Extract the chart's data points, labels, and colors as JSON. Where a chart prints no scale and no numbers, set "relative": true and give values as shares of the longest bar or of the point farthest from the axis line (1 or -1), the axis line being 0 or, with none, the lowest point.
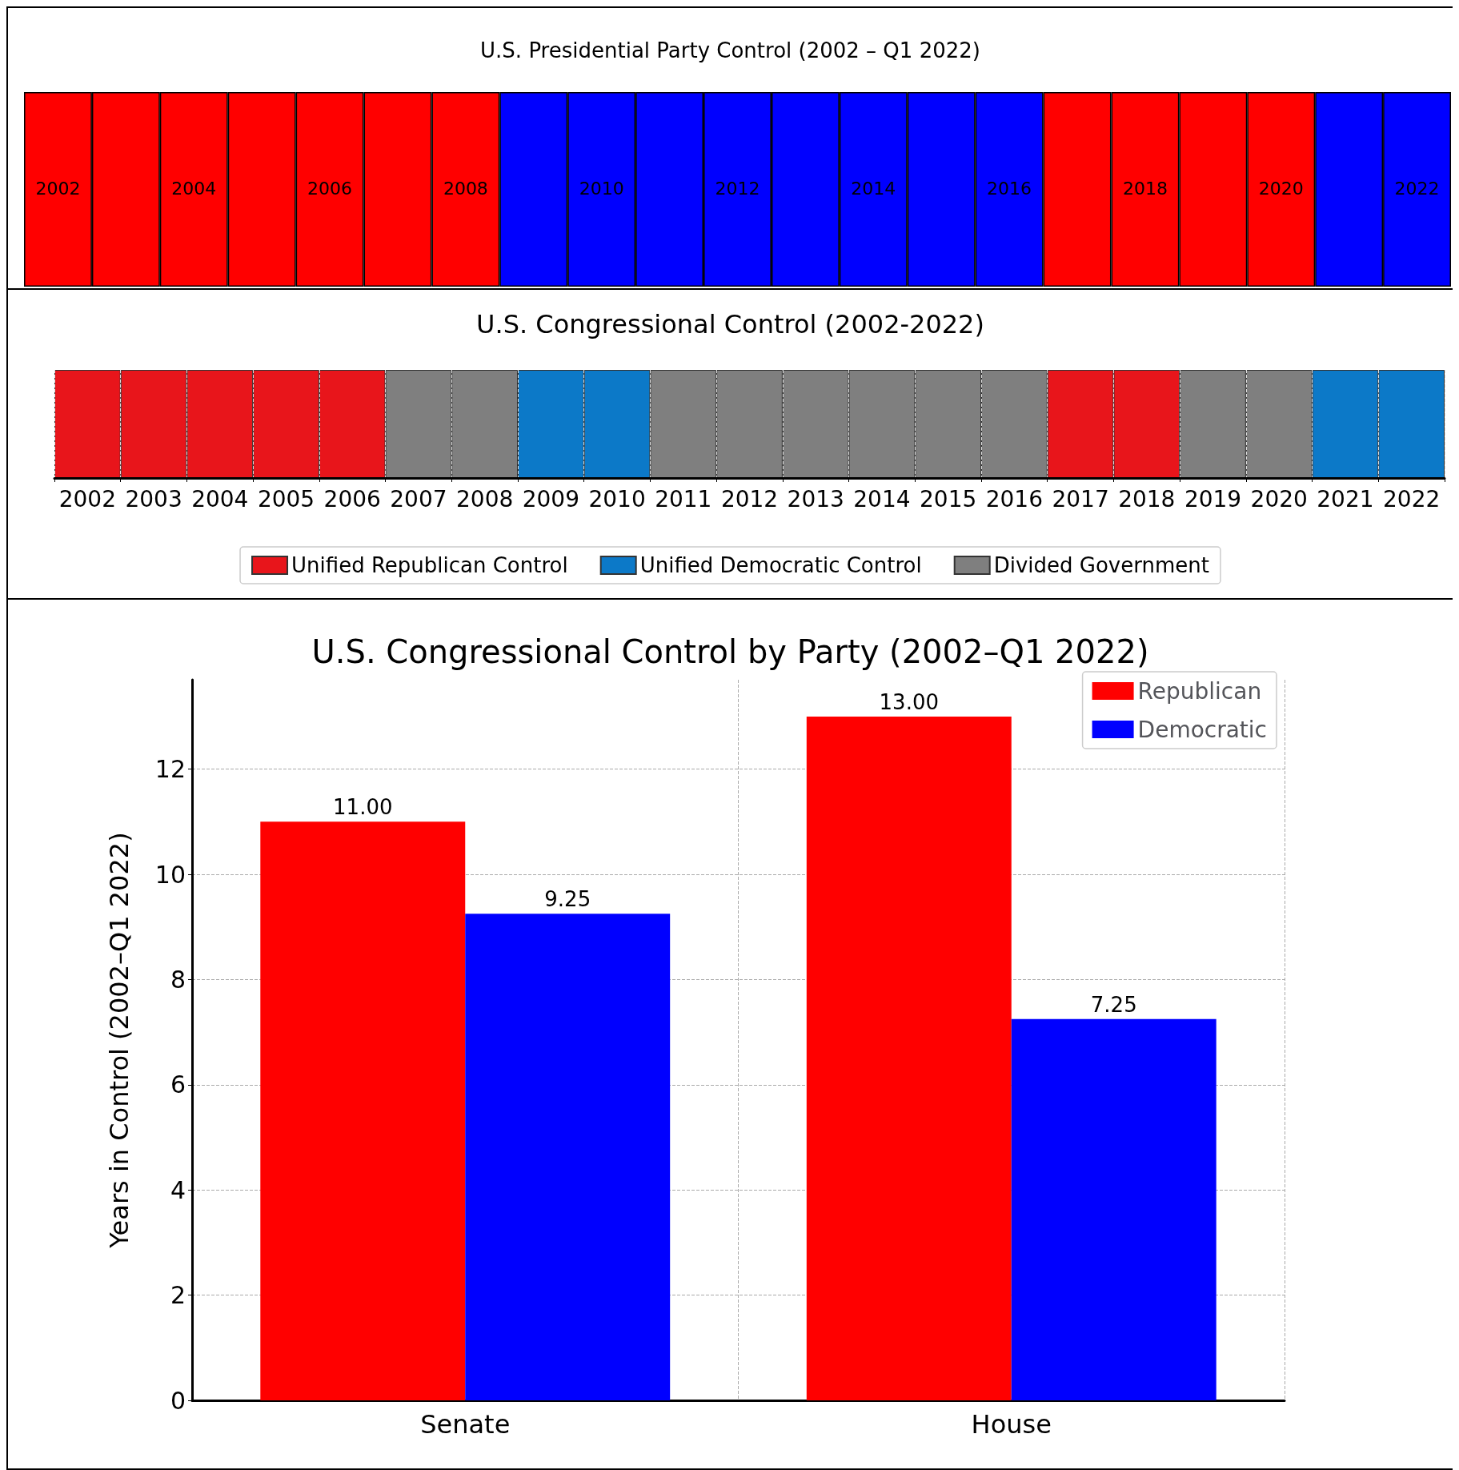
{
  "chart_data": [
    {
      "type": "bar",
      "title": "U.S. Presidential Party Control (2002 – Q1 2022)",
      "relative": true,
      "tick_labels": "x",
      "grid": false,
      "categories": [
        "2002",
        null,
        "2004",
        null,
        "2006",
        null,
        "2008",
        null,
        "2010",
        null,
        "2012",
        null,
        "2014",
        null,
        "2016",
        null,
        "2018",
        null,
        "2020",
        null,
        "2022"
      ],
      "values": [
        1,
        1,
        1,
        1,
        1,
        1,
        1,
        1,
        1,
        1,
        1,
        1,
        1,
        1,
        1,
        1,
        1,
        1,
        1,
        1,
        1
      ],
      "colors": [
        "#ff0000",
        "#ff0000",
        "#ff0000",
        "#ff0000",
        "#ff0000",
        "#ff0000",
        "#ff0000",
        "#0000ff",
        "#0000ff",
        "#0000ff",
        "#0000ff",
        "#0000ff",
        "#0000ff",
        "#0000ff",
        "#0000ff",
        "#ff0000",
        "#ff0000",
        "#ff0000",
        "#ff0000",
        "#0000ff",
        "#0000ff"
      ]
    },
    {
      "type": "bar",
      "title": "U.S. Congressional Control (2002-2022)",
      "relative": true,
      "tick_labels": "x",
      "grid": "x",
      "legend": "bottom",
      "stacked": true,
      "categories": [
        "2002",
        "2003",
        "2004",
        "2005",
        "2006",
        "2007",
        "2008",
        "2009",
        "2010",
        "2011",
        "2012",
        "2013",
        "2014",
        "2015",
        "2016",
        "2017",
        "2018",
        "2019",
        "2020",
        "2021",
        "2022"
      ],
      "series": [
        {
          "name": "Unified Republican Control",
          "color": "#e8151b",
          "values": [
            1,
            1,
            1,
            1,
            1,
            null,
            null,
            null,
            null,
            null,
            null,
            null,
            null,
            null,
            null,
            1,
            1,
            null,
            null,
            null,
            null
          ]
        },
        {
          "name": "Unified Democratic Control",
          "color": "#0c79c8",
          "values": [
            null,
            null,
            null,
            null,
            null,
            null,
            null,
            1,
            1,
            null,
            null,
            null,
            null,
            null,
            null,
            null,
            null,
            null,
            null,
            1,
            1
          ]
        },
        {
          "name": "Divided Government",
          "color": "#7f7f7f",
          "values": [
            null,
            null,
            null,
            null,
            null,
            1,
            1,
            null,
            null,
            1,
            1,
            1,
            1,
            1,
            1,
            null,
            null,
            1,
            1,
            null,
            null
          ]
        }
      ]
    },
    {
      "type": "bar",
      "title": "U.S. Congressional Control by Party (2002–Q1 2022)",
      "ylabel": "Years in Control (2002–Q1 2022)",
      "categories": [
        "Senate",
        "House"
      ],
      "ylim": [
        0,
        13.7
      ],
      "yticks": [
        0,
        2,
        4,
        6,
        8,
        10,
        12
      ],
      "grid": true,
      "legend": "top right",
      "series": [
        {
          "name": "Republican",
          "color": "#ff0000",
          "values": [
            11,
            13
          ],
          "value_labels": [
            "11.00",
            "13.00"
          ]
        },
        {
          "name": "Democratic",
          "color": "#0000ff",
          "values": [
            9.25,
            7.25
          ],
          "value_labels": [
            "9.25",
            "7.25"
          ]
        }
      ]
    }
  ]
}
